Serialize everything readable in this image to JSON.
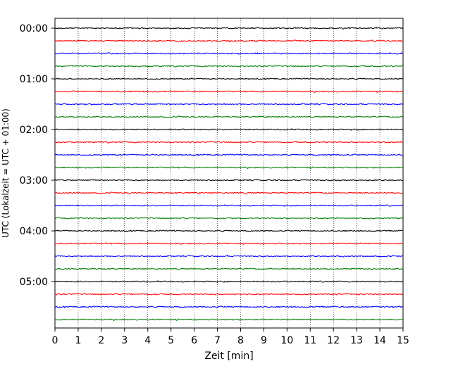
{
  "chart_data": {
    "type": "line",
    "title": "",
    "xlabel": "Zeit  [min]",
    "ylabel": "UTC (Lokalzeit = UTC + 01:00)",
    "xlim": [
      0,
      15
    ],
    "xticks": [
      "0",
      "1",
      "2",
      "3",
      "4",
      "5",
      "6",
      "7",
      "8",
      "9",
      "10",
      "11",
      "12",
      "13",
      "14",
      "15"
    ],
    "ytick_labels": [
      "00:00",
      "01:00",
      "02:00",
      "03:00",
      "04:00",
      "05:00"
    ],
    "grid": "vertical dotted",
    "trace_interval_min": 15,
    "trace_count": 24,
    "trace_colors": [
      "#000000",
      "#ff0000",
      "#0000ff",
      "#007f00"
    ],
    "series_description": "Seismogram helicorder: each horizontal trace is 15 minutes of ground motion noise, starting 00:00 UTC through 05:45 UTC"
  }
}
